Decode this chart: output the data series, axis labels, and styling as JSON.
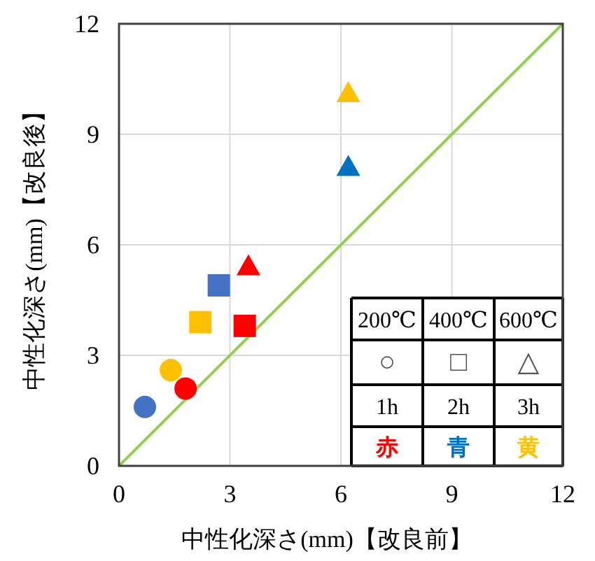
{
  "chart_data": {
    "type": "scatter",
    "xlabel": "中性化深さ(mm)【改良前】",
    "ylabel": "中性化深さ(mm)【改良後】",
    "xlim": [
      0,
      12
    ],
    "ylim": [
      0,
      12
    ],
    "xticks": [
      0,
      3,
      6,
      9,
      12
    ],
    "yticks": [
      0,
      3,
      6,
      9,
      12
    ],
    "grid": true,
    "annotations": [
      "200℃",
      "400℃",
      "600℃",
      "○",
      "□",
      "△",
      "1h",
      "2h",
      "3h",
      "赤",
      "青",
      "黄"
    ],
    "series": [
      {
        "type": "scatter",
        "marker": "circle",
        "color": "#ff0000",
        "x": [
          1.8
        ],
        "values": [
          2.1
        ]
      },
      {
        "type": "scatter",
        "marker": "circle",
        "color": "#4472c4",
        "x": [
          0.7
        ],
        "values": [
          1.6
        ]
      },
      {
        "type": "scatter",
        "marker": "circle",
        "color": "#ffc000",
        "x": [
          1.4
        ],
        "values": [
          2.6
        ]
      },
      {
        "type": "scatter",
        "marker": "square",
        "color": "#ff0000",
        "x": [
          3.4
        ],
        "values": [
          3.8
        ]
      },
      {
        "type": "scatter",
        "marker": "square",
        "color": "#4472c4",
        "x": [
          2.7
        ],
        "values": [
          4.9
        ]
      },
      {
        "type": "scatter",
        "marker": "square",
        "color": "#ffc000",
        "x": [
          2.2
        ],
        "values": [
          3.9
        ]
      },
      {
        "type": "scatter",
        "marker": "triangle",
        "color": "#ff0000",
        "x": [
          3.5
        ],
        "values": [
          5.4
        ]
      },
      {
        "type": "scatter",
        "marker": "triangle",
        "color": "#0070c0",
        "x": [
          6.2
        ],
        "values": [
          8.1
        ]
      },
      {
        "type": "scatter",
        "marker": "triangle",
        "color": "#ffc000",
        "x": [
          6.2
        ],
        "values": [
          10.1
        ]
      },
      {
        "type": "line",
        "marker": "none",
        "color": "#92d050",
        "x": [
          0,
          12
        ],
        "values": [
          0,
          12
        ]
      }
    ]
  }
}
